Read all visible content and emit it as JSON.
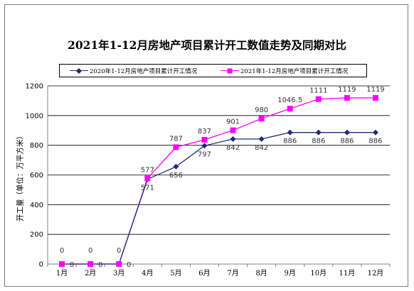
{
  "chart_data": {
    "type": "line",
    "title": "2021年1-12月房地产项目累计开工数值走势及同期对比",
    "ylabel": "开工量（单位：万平方米）",
    "categories": [
      "1月",
      "2月",
      "3月",
      "4月",
      "5月",
      "6月",
      "7月",
      "8月",
      "9月",
      "10月",
      "11月",
      "12月"
    ],
    "ylim": [
      0,
      1200
    ],
    "yticks": [
      0,
      200,
      400,
      600,
      800,
      1000,
      1200
    ],
    "grid": true,
    "legend_position": "top",
    "series": [
      {
        "name": "2020年1-12月房地产项目累计开工情况",
        "values": [
          0,
          0,
          0,
          571,
          656,
          797,
          842,
          842,
          886,
          886,
          886,
          886
        ],
        "labels": [
          "0",
          "0",
          "0",
          "571",
          "656",
          "797",
          "842",
          "842",
          "886",
          "886",
          "886",
          "886"
        ],
        "color": "#1f2a78",
        "marker": "diamond"
      },
      {
        "name": "2021年1-12月房地产项目累计开工情况",
        "values": [
          0,
          0,
          0,
          577,
          787,
          837,
          901,
          980,
          1046.5,
          1111,
          1119,
          1119
        ],
        "labels": [
          "0",
          "0",
          "0",
          "577",
          "787",
          "837",
          "901",
          "980",
          "1046.5",
          "1111",
          "1119",
          "1119"
        ],
        "color": "#ff00ff",
        "marker": "square"
      }
    ]
  }
}
